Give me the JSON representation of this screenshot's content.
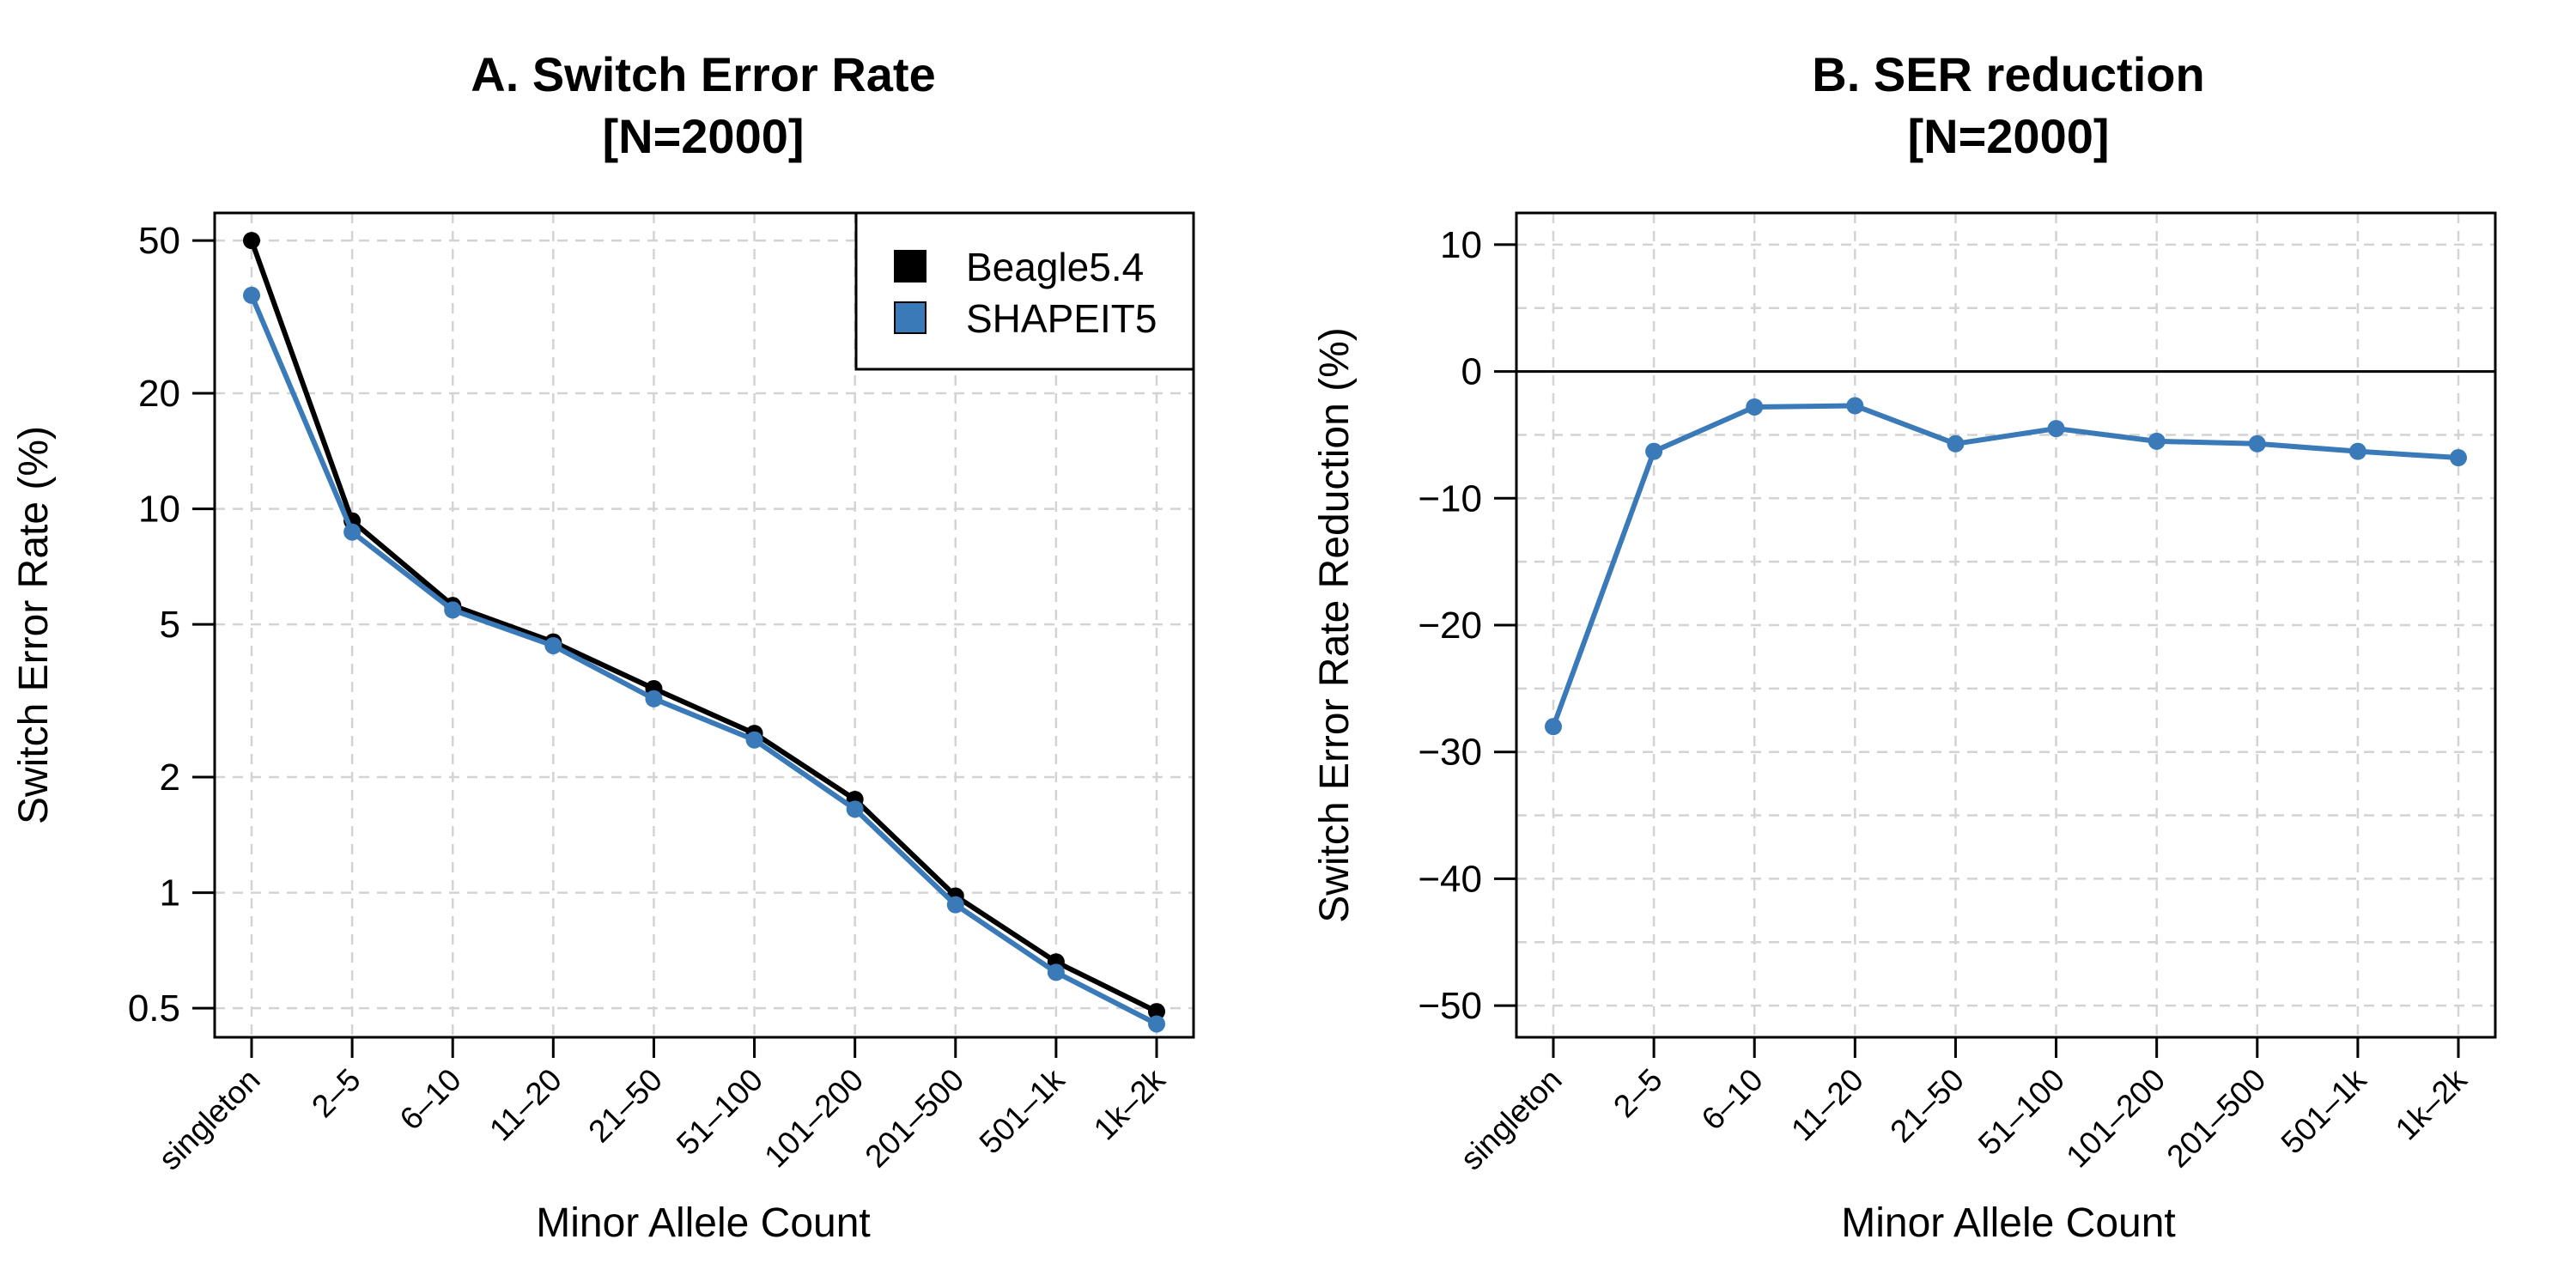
{
  "chart_data": [
    {
      "type": "line",
      "title": "A. Switch Error Rate",
      "subtitle": "[N=2000]",
      "xlabel": "Minor Allele Count",
      "ylabel": "Switch Error Rate (%)",
      "yscale": "log",
      "ylim": [
        0.42,
        59
      ],
      "yticks": [
        50,
        20,
        10,
        5,
        2,
        1,
        0.5
      ],
      "grid": true,
      "legend_position": "top-right",
      "categories": [
        "singleton",
        "2–5",
        "6–10",
        "11–20",
        "21–50",
        "51–100",
        "101–200",
        "201–500",
        "501–1k",
        "1k–2k"
      ],
      "series": [
        {
          "name": "Beagle5.4",
          "color": "#000000",
          "values": [
            50.0,
            9.3,
            5.6,
            4.5,
            3.4,
            2.6,
            1.75,
            0.98,
            0.66,
            0.49
          ]
        },
        {
          "name": "SHAPEIT5",
          "color": "#3a7ab8",
          "values": [
            36.0,
            8.7,
            5.45,
            4.4,
            3.2,
            2.5,
            1.65,
            0.93,
            0.62,
            0.455
          ]
        }
      ]
    },
    {
      "type": "line",
      "title": "B. SER reduction",
      "subtitle": "[N=2000]",
      "xlabel": "Minor Allele Count",
      "ylabel": "Switch Error Rate Reduction (%)",
      "ylim": [
        -52.5,
        12.5
      ],
      "yticks": [
        10,
        0,
        -10,
        -20,
        -30,
        -40,
        -50
      ],
      "grid": true,
      "reference_line": 0,
      "categories": [
        "singleton",
        "2–5",
        "6–10",
        "11–20",
        "21–50",
        "51–100",
        "101–200",
        "201–500",
        "501–1k",
        "1k–2k"
      ],
      "series": [
        {
          "name": "",
          "color": "#3a7ab8",
          "values": [
            -28.0,
            -6.3,
            -2.8,
            -2.7,
            -5.7,
            -4.5,
            -5.5,
            -5.7,
            -6.3,
            -6.8
          ]
        }
      ]
    }
  ]
}
